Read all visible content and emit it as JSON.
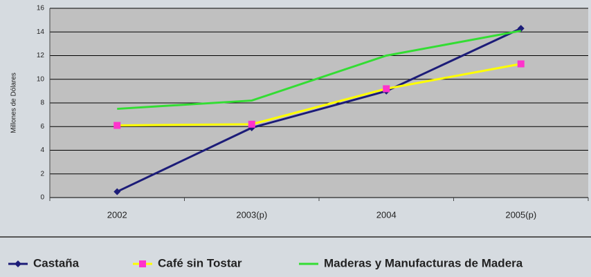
{
  "chart_data": {
    "type": "line",
    "y_label": "Millones de Dólares",
    "categories": [
      "2002",
      "2003(p)",
      "2004",
      "2005(p)"
    ],
    "series": [
      {
        "name": "Castaña",
        "color": "#1c1c78",
        "marker": "diamond",
        "marker_color": "#1c1c78",
        "values": [
          0.5,
          5.9,
          9.0,
          14.3
        ]
      },
      {
        "name": "Café sin Tostar",
        "color": "#ffff00",
        "marker": "square",
        "marker_color": "#ff33cc",
        "values": [
          6.1,
          6.2,
          9.2,
          11.3
        ]
      },
      {
        "name": "Maderas y Manufacturas de Madera",
        "color": "#33dd33",
        "marker": "none",
        "marker_color": "#33dd33",
        "values": [
          7.5,
          8.2,
          12.0,
          14.1
        ]
      }
    ],
    "ylim": [
      0,
      16
    ],
    "yticks": [
      0,
      2,
      4,
      6,
      8,
      10,
      12,
      14,
      16
    ],
    "grid": true
  }
}
